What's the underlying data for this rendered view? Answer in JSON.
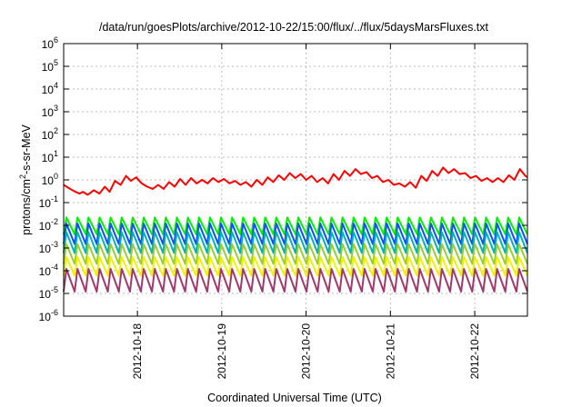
{
  "chart_data": {
    "type": "line",
    "title": "/data/run/goesPlots/archive/2012-10-22/15:00/flux/../flux/5daysMarsFluxes.txt",
    "xlabel": "Coordinated Universal Time (UTC)",
    "ylabel": {
      "before": "protons/cm",
      "sup": "2",
      "after": "-s-sr-MeV"
    },
    "yscale": "log",
    "ylim": [
      1e-06,
      1000000
    ],
    "y_ticks": [
      {
        "value": 1e-06,
        "base": "10",
        "exp": "-6"
      },
      {
        "value": 1e-05,
        "base": "10",
        "exp": "-5"
      },
      {
        "value": 0.0001,
        "base": "10",
        "exp": "-4"
      },
      {
        "value": 0.001,
        "base": "10",
        "exp": "-3"
      },
      {
        "value": 0.01,
        "base": "10",
        "exp": "-2"
      },
      {
        "value": 0.1,
        "base": "10",
        "exp": "-1"
      },
      {
        "value": 1,
        "base": "10",
        "exp": "0"
      },
      {
        "value": 10,
        "base": "10",
        "exp": "1"
      },
      {
        "value": 100,
        "base": "10",
        "exp": "2"
      },
      {
        "value": 1000,
        "base": "10",
        "exp": "3"
      },
      {
        "value": 10000,
        "base": "10",
        "exp": "4"
      },
      {
        "value": 100000,
        "base": "10",
        "exp": "5"
      },
      {
        "value": 1000000,
        "base": "10",
        "exp": "6"
      }
    ],
    "xlim": [
      "2012-10-17 03:00",
      "2012-10-22 15:00"
    ],
    "x_ticks": [
      "2012-10-18",
      "2012-10-19",
      "2012-10-20",
      "2012-10-21",
      "2012-10-22"
    ],
    "grid": true,
    "series": [
      {
        "color": "#ff0000",
        "x": [
          "2012-10-17 03:00",
          "2012-10-17 04:48",
          "2012-10-17 06:21",
          "2012-10-17 07:31",
          "2012-10-17 08:29",
          "2012-10-17 09:50",
          "2012-10-17 11:36",
          "2012-10-17 13:10",
          "2012-10-17 14:43",
          "2012-10-17 16:05",
          "2012-10-17 17:38",
          "2012-10-17 19:12",
          "2012-10-17 20:45",
          "2012-10-17 22:07",
          "2012-10-17 23:40",
          "2012-10-18 01:14",
          "2012-10-18 02:47",
          "2012-10-18 04:21",
          "2012-10-18 05:55",
          "2012-10-18 07:28",
          "2012-10-18 09:02",
          "2012-10-18 10:35",
          "2012-10-18 12:09",
          "2012-10-18 13:42",
          "2012-10-18 15:16",
          "2012-10-18 16:50",
          "2012-10-18 18:23",
          "2012-10-18 19:57",
          "2012-10-18 21:30",
          "2012-10-18 23:04",
          "2012-10-19 00:38",
          "2012-10-19 02:11",
          "2012-10-19 03:45",
          "2012-10-19 05:18",
          "2012-10-19 06:52",
          "2012-10-19 08:25",
          "2012-10-19 09:59",
          "2012-10-19 11:33",
          "2012-10-19 13:06",
          "2012-10-19 14:40",
          "2012-10-19 16:13",
          "2012-10-19 17:47",
          "2012-10-19 19:21",
          "2012-10-19 20:54",
          "2012-10-19 22:28",
          "2012-10-20 00:01",
          "2012-10-20 01:35",
          "2012-10-20 03:08",
          "2012-10-20 04:42",
          "2012-10-20 06:16",
          "2012-10-20 07:49",
          "2012-10-20 09:23",
          "2012-10-20 10:56",
          "2012-10-20 12:30",
          "2012-10-20 14:04",
          "2012-10-20 15:37",
          "2012-10-20 17:11",
          "2012-10-20 18:44",
          "2012-10-20 20:18",
          "2012-10-20 21:51",
          "2012-10-20 23:25",
          "2012-10-21 00:59",
          "2012-10-21 02:32",
          "2012-10-21 04:06",
          "2012-10-21 05:39",
          "2012-10-21 07:13",
          "2012-10-21 08:47",
          "2012-10-21 10:20",
          "2012-10-21 11:54",
          "2012-10-21 13:27",
          "2012-10-21 15:01",
          "2012-10-21 16:34",
          "2012-10-21 18:08",
          "2012-10-21 19:42",
          "2012-10-21 21:15",
          "2012-10-21 22:49",
          "2012-10-22 00:22",
          "2012-10-22 01:56",
          "2012-10-22 03:30",
          "2012-10-22 05:03",
          "2012-10-22 06:37",
          "2012-10-22 08:10",
          "2012-10-22 09:44",
          "2012-10-22 11:17",
          "2012-10-22 12:51",
          "2012-10-22 14:25",
          "2012-10-22 15:00"
        ],
        "y": [
          0.6,
          0.4,
          0.3,
          0.25,
          0.3,
          0.22,
          0.35,
          0.25,
          0.5,
          0.3,
          0.9,
          0.6,
          1.5,
          0.9,
          1.3,
          0.7,
          0.5,
          0.4,
          0.6,
          0.4,
          0.8,
          0.5,
          1.1,
          0.6,
          1.2,
          0.7,
          1.0,
          0.7,
          1.2,
          0.8,
          1.1,
          0.7,
          0.9,
          0.6,
          0.8,
          0.5,
          1.0,
          0.6,
          1.3,
          0.8,
          1.6,
          1.0,
          2.0,
          1.2,
          1.8,
          1.0,
          1.5,
          0.8,
          1.2,
          0.7,
          1.8,
          1.0,
          2.5,
          1.5,
          3.0,
          1.8,
          2.2,
          1.2,
          1.5,
          0.8,
          1.0,
          0.6,
          0.7,
          0.5,
          0.8,
          0.45,
          1.5,
          0.9,
          2.5,
          1.5,
          3.5,
          2.0,
          3.0,
          1.8,
          2.0,
          1.2,
          1.5,
          0.9,
          1.2,
          0.8,
          1.2,
          0.8,
          1.6,
          1.0,
          3.0,
          1.5,
          1.3
        ]
      },
      {
        "color": "#00ee00",
        "pattern": "sawtooth",
        "min": 0.004,
        "max": 0.022,
        "cycles": 42
      },
      {
        "color": "#0a50ff",
        "pattern": "sawtooth",
        "min": 0.0015,
        "max": 0.012,
        "cycles": 42
      },
      {
        "color": "#00b2b2",
        "pattern": "sawtooth",
        "min": 0.0006,
        "max": 0.005,
        "cycles": 42
      },
      {
        "color": "#9acd32",
        "pattern": "sawtooth",
        "min": 0.0002,
        "max": 0.0015,
        "cycles": 42
      },
      {
        "color": "#f0f000",
        "pattern": "sawtooth",
        "min": 6e-05,
        "max": 0.0004,
        "cycles": 42
      },
      {
        "color": "#9e3a6e",
        "pattern": "sawtooth",
        "min": 1.2e-05,
        "max": 0.00012,
        "cycles": 42
      }
    ]
  }
}
